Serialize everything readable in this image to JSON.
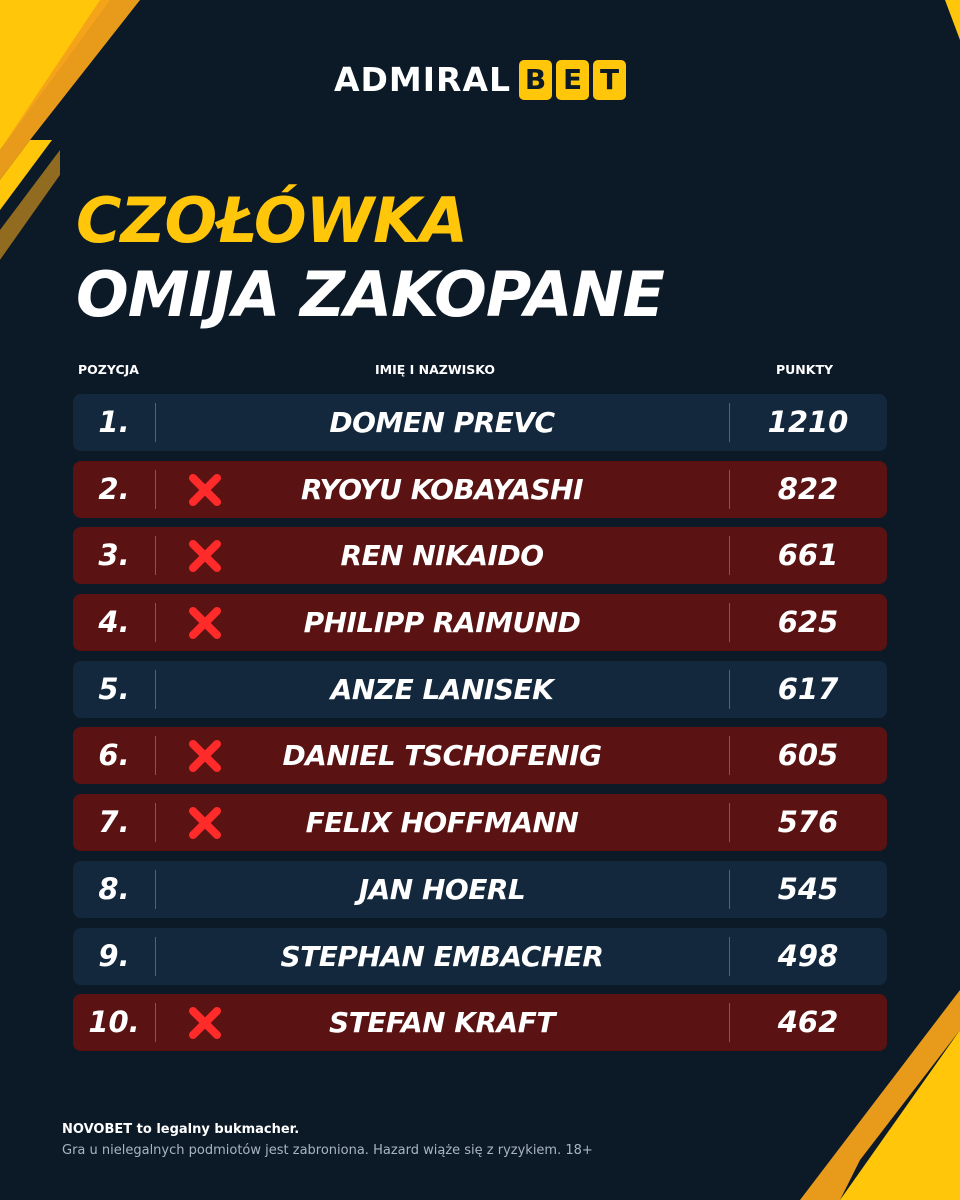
{
  "logo": {
    "admiral": "ADMIRAL",
    "bet": [
      "B",
      "E",
      "T"
    ]
  },
  "headline": {
    "line1": "CZOŁÓWKA",
    "line2": "OMIJA ZAKOPANE"
  },
  "table": {
    "headers": {
      "position": "POZYCJA",
      "name": "IMIĘ I NAZWISKO",
      "points": "PUNKTY"
    },
    "rows": [
      {
        "position": "1.",
        "name": "DOMEN PREVC",
        "points": "1210",
        "absent": false
      },
      {
        "position": "2.",
        "name": "RYOYU KOBAYASHI",
        "points": "822",
        "absent": true
      },
      {
        "position": "3.",
        "name": "REN NIKAIDO",
        "points": "661",
        "absent": true
      },
      {
        "position": "4.",
        "name": "PHILIPP RAIMUND",
        "points": "625",
        "absent": true
      },
      {
        "position": "5.",
        "name": "ANZE LANISEK",
        "points": "617",
        "absent": false
      },
      {
        "position": "6.",
        "name": "DANIEL TSCHOFENIG",
        "points": "605",
        "absent": true
      },
      {
        "position": "7.",
        "name": "FELIX HOFFMANN",
        "points": "576",
        "absent": true
      },
      {
        "position": "8.",
        "name": "JAN HOERL",
        "points": "545",
        "absent": false
      },
      {
        "position": "9.",
        "name": "STEPHAN EMBACHER",
        "points": "498",
        "absent": false
      },
      {
        "position": "10.",
        "name": "STEFAN KRAFT",
        "points": "462",
        "absent": true
      }
    ]
  },
  "footer": {
    "line1": "NOVOBET to legalny bukmacher.",
    "line2": "Gra u nielegalnych podmiotów jest zabroniona. Hazard wiąże się z ryzykiem. 18+"
  },
  "colors": {
    "background": "#0c1a28",
    "accent_yellow": "#ffc60a",
    "row_dark": "#13283c",
    "row_red": "#5b1212",
    "x_mark": "#ff2a2a"
  },
  "icons": {
    "absent_mark": "x-mark-icon"
  }
}
